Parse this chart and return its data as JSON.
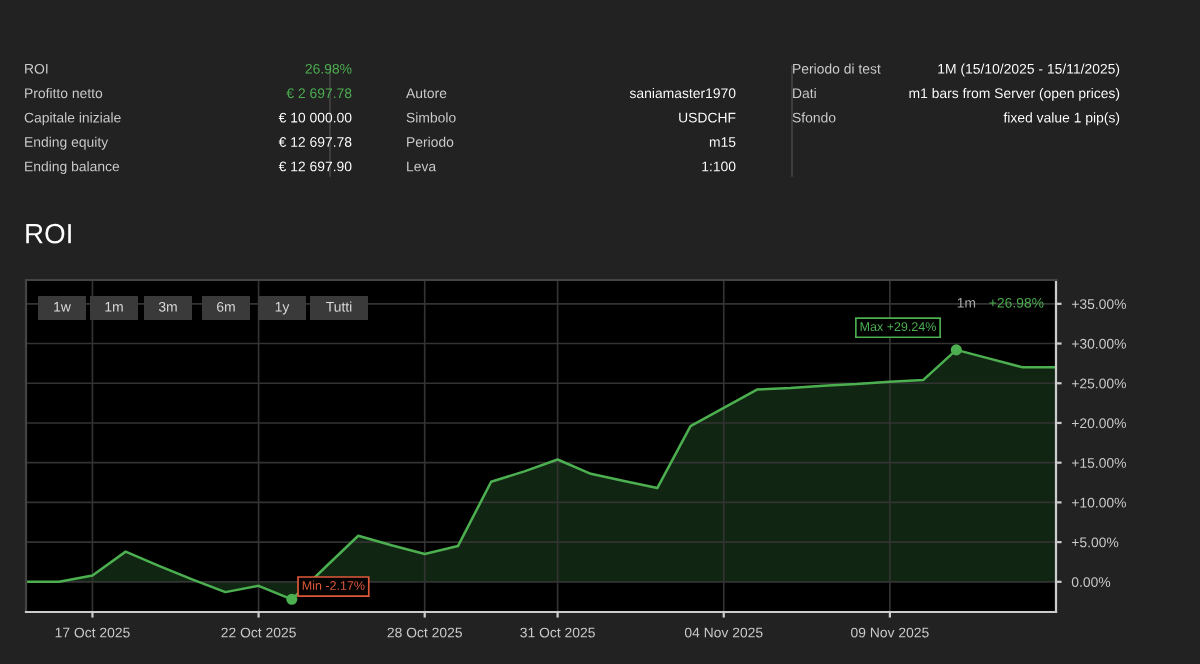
{
  "chart_data": {
    "type": "area",
    "title": "ROI",
    "categories": [
      null,
      null,
      "17 Oct 2025",
      null,
      null,
      null,
      null,
      "22 Oct 2025",
      null,
      null,
      null,
      null,
      "28 Oct 2025",
      null,
      null,
      null,
      "31 Oct 2025",
      null,
      null,
      null,
      null,
      "04 Nov 2025",
      null,
      null,
      null,
      null,
      "09 Nov 2025",
      null,
      null,
      null,
      null,
      null
    ],
    "series": [
      {
        "color": "#4caf50",
        "values": [
          0,
          0,
          0.8,
          3.8,
          2.0,
          0.3,
          -1.3,
          -0.5,
          -2.2,
          1.8,
          5.8,
          4.6,
          3.5,
          4.5,
          12.6,
          13.9,
          15.4,
          13.6,
          12.7,
          11.8,
          19.6,
          21.9,
          24.2,
          24.4,
          24.7,
          24.9,
          25.2,
          25.4,
          29.2,
          28.1,
          27.0,
          27.0
        ]
      }
    ],
    "ylim": [
      -3.8,
      38
    ],
    "yticks": [
      {
        "value": 0,
        "label": "0.00%"
      },
      {
        "value": 5,
        "label": "+5.00%"
      },
      {
        "value": 10,
        "label": "+10.00%"
      },
      {
        "value": 15,
        "label": "+15.00%"
      },
      {
        "value": 20,
        "label": "+20.00%"
      },
      {
        "value": 25,
        "label": "+25.00%"
      },
      {
        "value": 30,
        "label": "+30.00%"
      },
      {
        "value": 35,
        "label": "+35.00%"
      }
    ],
    "grid": true,
    "marker": "none",
    "annotations": [
      "1w",
      "1m",
      "3m",
      "6m",
      "1y",
      "Tutti",
      "1m",
      "+26.98%",
      "ROI",
      "26.98%",
      "Profitto netto",
      "€ 2 697.78",
      "Capitale iniziale",
      "€ 10 000.00",
      "Ending equity",
      "€ 12 697.78",
      "Ending balance",
      "€ 12 697.90",
      "Autore",
      "saniamaster1970",
      "Simbolo",
      "USDCHF",
      "Periodo",
      "m15",
      "Leva",
      "1:100",
      "Periodo di test",
      "1M (15/10/2025 - 15/11/2025)",
      "Dati",
      "m1 bars from Server (open prices)",
      "Sfondo",
      "fixed value 1 pip(s)",
      "Min -2.17%",
      "Max +29.24%"
    ]
  }
}
